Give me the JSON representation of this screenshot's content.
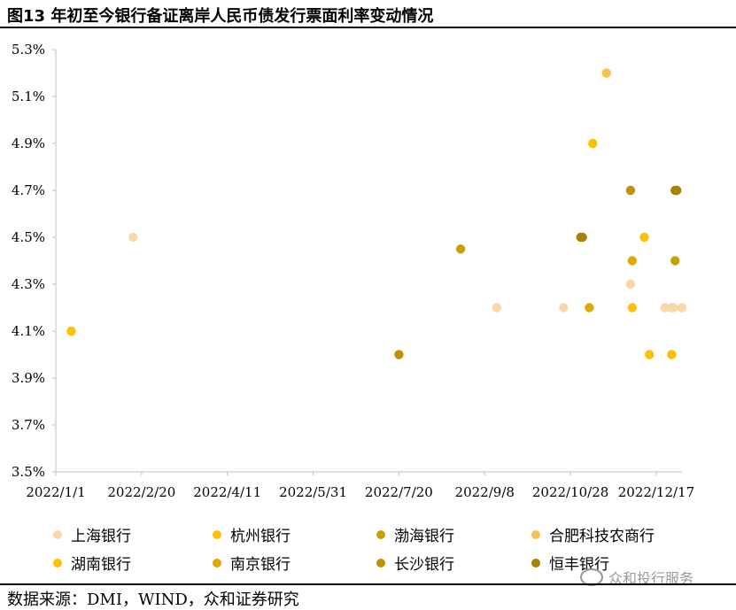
{
  "title": "图13 年初至今银行备证离岸人民币债发行票面利率变动情况",
  "source": "数据来源：DMI，WIND，众和证券研究",
  "watermark": "众和投行服务",
  "chart_data": {
    "type": "scatter",
    "title": "图13 年初至今银行备证离岸人民币债发行票面利率变动情况",
    "xlabel": "",
    "ylabel": "",
    "x_ticks": [
      "2022/1/1",
      "2022/2/20",
      "2022/4/11",
      "2022/5/31",
      "2022/7/20",
      "2022/9/8",
      "2022/10/28",
      "2022/12/17"
    ],
    "y_ticks": [
      "3.5%",
      "3.7%",
      "3.9%",
      "4.1%",
      "4.3%",
      "4.5%",
      "4.7%",
      "4.9%",
      "5.1%",
      "5.3%"
    ],
    "xlim": [
      "2022/1/1",
      "2023/1/1"
    ],
    "ylim": [
      3.5,
      5.3
    ],
    "legend_position": "bottom",
    "series": [
      {
        "name": "上海银行",
        "color": "#FAD7A8",
        "points": [
          {
            "x": "2022/2/15",
            "y": 4.5
          },
          {
            "x": "2022/9/15",
            "y": 4.2
          },
          {
            "x": "2022/10/24",
            "y": 4.2
          },
          {
            "x": "2022/12/2",
            "y": 4.3
          },
          {
            "x": "2022/12/22",
            "y": 4.2
          },
          {
            "x": "2022/12/26",
            "y": 4.2
          },
          {
            "x": "2022/12/27",
            "y": 4.2
          },
          {
            "x": "2023/1/1",
            "y": 4.2
          }
        ]
      },
      {
        "name": "杭州银行",
        "color": "#FFC000",
        "points": [
          {
            "x": "2022/1/10",
            "y": 4.1
          },
          {
            "x": "2022/11/10",
            "y": 4.9
          },
          {
            "x": "2022/12/10",
            "y": 4.5
          },
          {
            "x": "2022/12/13",
            "y": 4.0
          },
          {
            "x": "2022/12/26",
            "y": 4.0
          }
        ]
      },
      {
        "name": "渤海银行",
        "color": "#C9A000",
        "points": [
          {
            "x": "2022/8/25",
            "y": 4.45
          },
          {
            "x": "2022/12/28",
            "y": 4.4
          }
        ]
      },
      {
        "name": "合肥科技农商行",
        "color": "#F7C24F",
        "points": [
          {
            "x": "2022/11/18",
            "y": 5.2
          }
        ]
      },
      {
        "name": "湖南银行",
        "color": "#FFC000",
        "points": [
          {
            "x": "2022/12/3",
            "y": 4.2
          }
        ]
      },
      {
        "name": "南京银行",
        "color": "#E0A800",
        "points": [
          {
            "x": "2022/11/8",
            "y": 4.2
          },
          {
            "x": "2022/12/3",
            "y": 4.4
          }
        ]
      },
      {
        "name": "长沙银行",
        "color": "#BF9000",
        "points": [
          {
            "x": "2022/7/20",
            "y": 4.0
          },
          {
            "x": "2022/12/2",
            "y": 4.7
          }
        ]
      },
      {
        "name": "恒丰银行",
        "color": "#A88200",
        "points": [
          {
            "x": "2022/11/3",
            "y": 4.5
          },
          {
            "x": "2022/11/4",
            "y": 4.5
          },
          {
            "x": "2022/12/28",
            "y": 4.7
          },
          {
            "x": "2022/12/29",
            "y": 4.7
          }
        ]
      }
    ]
  }
}
